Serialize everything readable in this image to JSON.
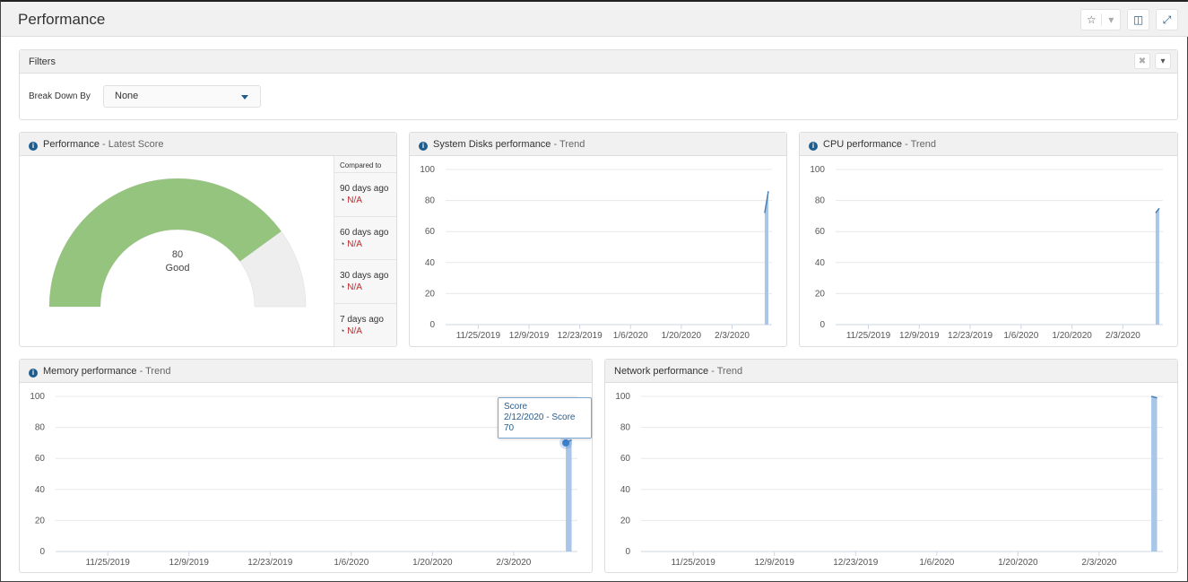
{
  "header": {
    "title": "Performance",
    "buttons": [
      {
        "icon": "star-icon",
        "glyph": "☆"
      },
      {
        "icon": "chevron-down-icon",
        "glyph": "▾"
      },
      {
        "icon": "columns-icon",
        "glyph": "◫"
      },
      {
        "icon": "expand-icon",
        "glyph": "⤢"
      }
    ]
  },
  "filters": {
    "title": "Filters",
    "clear_glyph": "✖",
    "collapse_glyph": "▾",
    "break_down_label": "Break Down By",
    "break_down_value": "None"
  },
  "gauge": {
    "title": "Performance",
    "subtitle": " - Latest Score",
    "score": 80,
    "max": 100,
    "label": "Good",
    "color": "#94c47d",
    "track_color": "#eeeeee",
    "compared_header": "Compared to",
    "compared": [
      {
        "period": "90 days ago",
        "value": "N/A"
      },
      {
        "period": "60 days ago",
        "value": "N/A"
      },
      {
        "period": "30 days ago",
        "value": "N/A"
      },
      {
        "period": "7 days ago",
        "value": "N/A"
      }
    ]
  },
  "chart_data": [
    {
      "id": "disks",
      "type": "area",
      "title": "System Disks performance",
      "subtitle": " - Trend",
      "xlim": [
        "2019-11-16",
        "2020-02-14"
      ],
      "ylim": [
        0,
        100
      ],
      "yticks": [
        0,
        20,
        40,
        60,
        80,
        100
      ],
      "xticks": [
        "11/25/2019",
        "12/9/2019",
        "12/23/2019",
        "1/6/2020",
        "1/20/2020",
        "2/3/2020"
      ],
      "x": [
        "2020-02-12",
        "2020-02-13"
      ],
      "values": [
        72,
        86
      ],
      "grid": true,
      "color": "#a9c6e8",
      "line": "#4a7fb5"
    },
    {
      "id": "cpu",
      "type": "area",
      "title": "CPU performance",
      "subtitle": " - Trend",
      "xlim": [
        "2019-11-16",
        "2020-02-14"
      ],
      "ylim": [
        0,
        100
      ],
      "yticks": [
        0,
        20,
        40,
        60,
        80,
        100
      ],
      "xticks": [
        "11/25/2019",
        "12/9/2019",
        "12/23/2019",
        "1/6/2020",
        "1/20/2020",
        "2/3/2020"
      ],
      "x": [
        "2020-02-12",
        "2020-02-13"
      ],
      "values": [
        72,
        75
      ],
      "grid": true,
      "color": "#a9c6e8",
      "line": "#4a7fb5"
    },
    {
      "id": "memory",
      "type": "area",
      "title": "Memory performance",
      "subtitle": " - Trend",
      "xlim": [
        "2019-11-16",
        "2020-02-14"
      ],
      "ylim": [
        0,
        100
      ],
      "yticks": [
        0,
        20,
        40,
        60,
        80,
        100
      ],
      "xticks": [
        "11/25/2019",
        "12/9/2019",
        "12/23/2019",
        "1/6/2020",
        "1/20/2020",
        "2/3/2020"
      ],
      "x": [
        "2020-02-12",
        "2020-02-13"
      ],
      "values": [
        70,
        72
      ],
      "grid": true,
      "color": "#a9c6e8",
      "line": "#4a7fb5",
      "tooltip": {
        "series": "Score",
        "text": "2/12/2020 - Score 70"
      }
    },
    {
      "id": "network",
      "type": "area",
      "title": "Network performance",
      "subtitle": " - Trend",
      "xlim": [
        "2019-11-16",
        "2020-02-14"
      ],
      "ylim": [
        0,
        100
      ],
      "yticks": [
        0,
        20,
        40,
        60,
        80,
        100
      ],
      "xticks": [
        "11/25/2019",
        "12/9/2019",
        "12/23/2019",
        "1/6/2020",
        "1/20/2020",
        "2/3/2020"
      ],
      "x": [
        "2020-02-12",
        "2020-02-13"
      ],
      "values": [
        100,
        99
      ],
      "grid": true,
      "color": "#a9c6e8",
      "line": "#4a7fb5"
    }
  ]
}
